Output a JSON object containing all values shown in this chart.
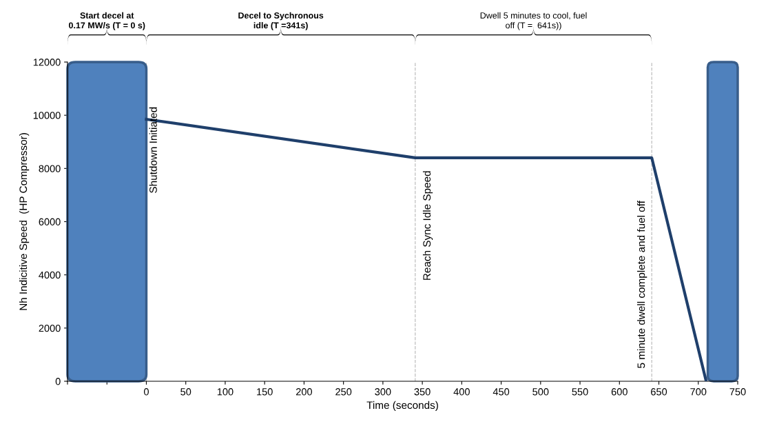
{
  "chart_data": {
    "type": "line",
    "xlabel": "Time (seconds)",
    "ylabel": "Nh Indicitive Speed  (HP Compressor)",
    "x": [
      0,
      341,
      641,
      710
    ],
    "series": [
      {
        "color": "#1f3f6b",
        "values": [
          9850,
          8400,
          8400,
          0
        ]
      }
    ],
    "xlim": [
      -100,
      750
    ],
    "xticks": [
      {
        "value": -100,
        "label": null
      },
      {
        "value": -50,
        "label": null
      },
      0,
      50,
      100,
      150,
      200,
      250,
      300,
      350,
      400,
      450,
      500,
      550,
      600,
      650,
      700,
      750
    ],
    "ylim": [
      0,
      12000
    ],
    "yticks": [
      0,
      2000,
      4000,
      6000,
      8000,
      10000,
      12000
    ],
    "grid": false,
    "marker": "none",
    "line_style": "solid",
    "ref_lines": [
      {
        "axis": "x",
        "value": 0,
        "label": "Shutdown Initiated",
        "color": "#bfbfbf",
        "line_style": "dashed"
      },
      {
        "axis": "x",
        "value": 341,
        "label": "Reach Sync Idle Speed",
        "color": "#bfbfbf",
        "line_style": "dashed"
      },
      {
        "axis": "x",
        "value": 641,
        "label": "5 minute dwell complete and fuel off",
        "color": "#bfbfbf",
        "line_style": "dashed"
      }
    ],
    "bands": [
      {
        "axis": "x",
        "from": -100,
        "to": 0,
        "color": "#4f81bd"
      },
      {
        "axis": "x",
        "from": 712,
        "to": 750,
        "color": "#4f81bd"
      }
    ],
    "annotations": [
      "Start decel at\n0.17 MW/s (T = 0 s)",
      "Decel to Sychronous\nidle (T =341s)",
      "Dwell 5 minutes to cool, fuel\noff (T =  641s))"
    ]
  }
}
